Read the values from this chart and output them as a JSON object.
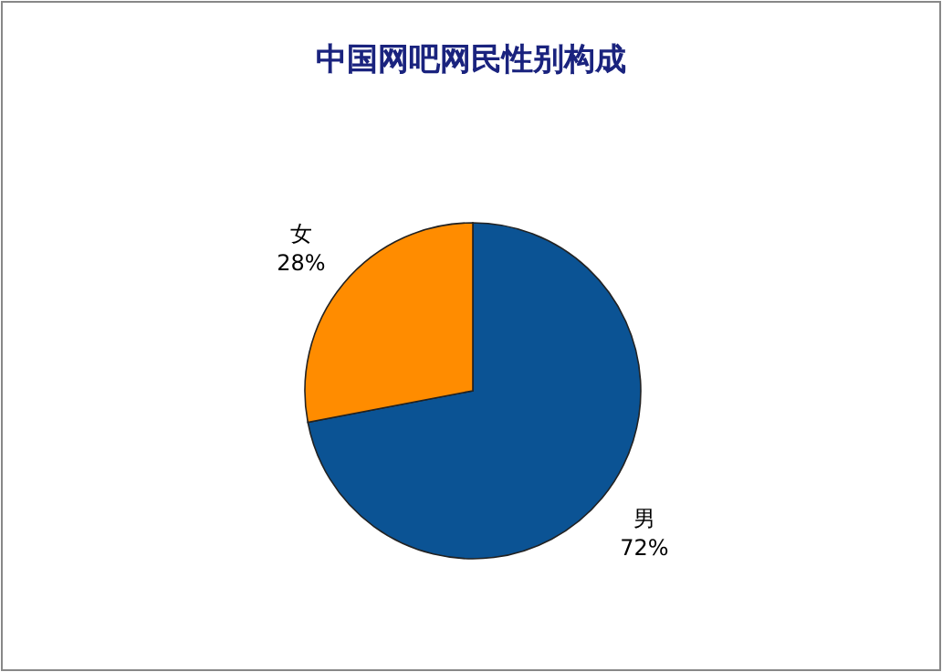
{
  "chart_data": {
    "type": "pie",
    "title": "中国网吧网民性别构成",
    "categories": [
      "男",
      "女"
    ],
    "values": [
      72,
      28
    ],
    "colors": [
      "#0b5394",
      "#ff8c00"
    ],
    "value_labels": [
      "72%",
      "28%"
    ]
  }
}
